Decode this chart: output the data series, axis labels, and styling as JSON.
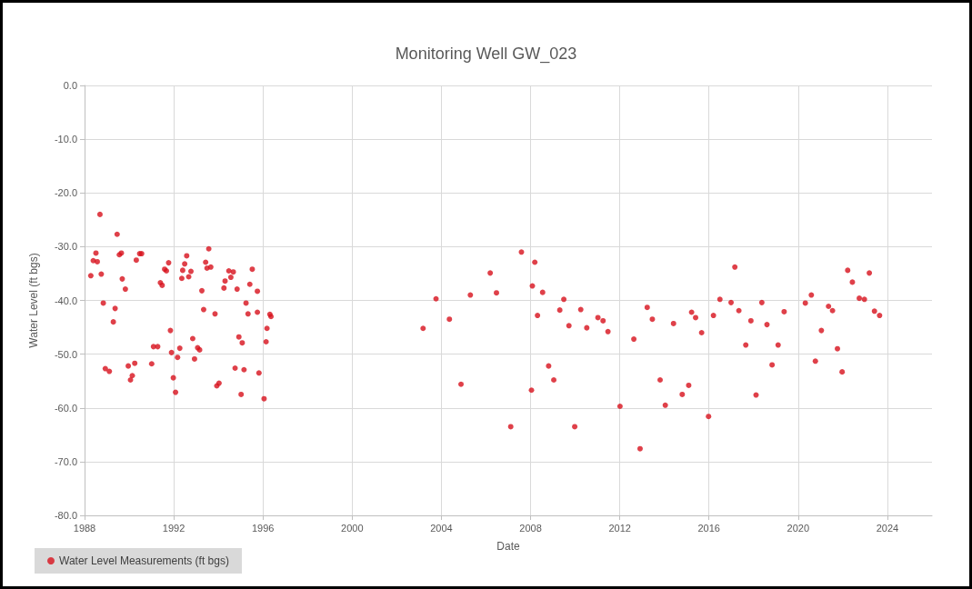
{
  "chart_data": {
    "type": "scatter",
    "title": "Monitoring Well GW_023",
    "xlabel": "Date",
    "ylabel": "Water Level (ft bgs)",
    "xlim": [
      1988,
      2026
    ],
    "xticks": [
      1988,
      1992,
      1996,
      2000,
      2004,
      2008,
      2012,
      2016,
      2020,
      2024
    ],
    "ylim": [
      -80,
      0
    ],
    "yticks": [
      {
        "value": -80,
        "label": "-80.0"
      },
      {
        "value": -70,
        "label": "-70.0"
      },
      {
        "value": -60,
        "label": "-60.0"
      },
      {
        "value": -50,
        "label": "-50.0"
      },
      {
        "value": -40,
        "label": "-40.0"
      },
      {
        "value": -30,
        "label": "-30.0"
      },
      {
        "value": -20,
        "label": "-20.0"
      },
      {
        "value": -10,
        "label": "-10.0"
      },
      {
        "value": 0,
        "label": "0.0"
      }
    ],
    "grid": true,
    "legend": "bottom left",
    "marker": "circle",
    "series": [
      {
        "name": "Water Level Measurements (ft bgs)",
        "color": "#d7101c",
        "x": [
          1988.69,
          1989.46,
          1988.51,
          1988.39,
          1988.57,
          1988.28,
          1988.75,
          1989.56,
          1989.65,
          1989.69,
          1989.83,
          1988.84,
          1989.37,
          1989.29,
          1988.93,
          1989.11,
          1989.96,
          1990.25,
          1990.14,
          1990.06,
          1990.32,
          1990.47,
          1990.56,
          1991.01,
          1991.09,
          1991.28,
          1991.4,
          1991.48,
          1991.59,
          1991.67,
          1991.77,
          1991.85,
          1991.9,
          1991.98,
          1992.08,
          1992.17,
          1992.27,
          1992.36,
          1992.4,
          1992.49,
          1992.58,
          1992.67,
          1992.77,
          1992.85,
          1992.93,
          1993.07,
          1993.16,
          1993.26,
          1993.34,
          1993.43,
          1993.49,
          1993.66,
          1993.57,
          1993.85,
          1993.93,
          1994.03,
          1994.25,
          1994.3,
          1994.47,
          1994.56,
          1994.67,
          1994.75,
          1994.84,
          1994.92,
          1995.02,
          1995.07,
          1995.15,
          1995.24,
          1995.33,
          1995.41,
          1995.52,
          1995.75,
          1995.75,
          1995.82,
          1996.05,
          1996.14,
          1996.18,
          1996.31,
          1996.36,
          2003.18,
          2003.76,
          2004.36,
          2004.88,
          2005.3,
          2006.19,
          2006.47,
          2007.11,
          2007.59,
          2008.04,
          2008.08,
          2008.19,
          2008.31,
          2008.54,
          2008.81,
          2009.04,
          2009.31,
          2009.49,
          2009.72,
          2009.98,
          2010.25,
          2010.52,
          2011.02,
          2011.25,
          2011.47,
          2012.01,
          2012.63,
          2012.91,
          2013.23,
          2013.46,
          2013.81,
          2014.04,
          2014.41,
          2014.8,
          2015.09,
          2015.22,
          2015.4,
          2015.67,
          2015.98,
          2016.2,
          2016.49,
          2016.99,
          2017.16,
          2017.34,
          2017.65,
          2017.88,
          2018.11,
          2018.37,
          2018.6,
          2018.83,
          2019.1,
          2019.37,
          2020.32,
          2020.59,
          2020.77,
          2021.04,
          2021.36,
          2021.54,
          2021.76,
          2021.97,
          2022.22,
          2022.43,
          2022.74,
          2022.97,
          2023.19,
          2023.42,
          2023.65
        ],
        "values": [
          -24.0,
          -27.7,
          -31.2,
          -32.6,
          -32.8,
          -35.4,
          -35.1,
          -31.5,
          -31.2,
          -36.0,
          -37.9,
          -40.5,
          -41.5,
          -44.0,
          -52.7,
          -53.2,
          -52.2,
          -51.7,
          -54.0,
          -54.8,
          -32.5,
          -31.3,
          -31.3,
          -51.8,
          -48.6,
          -48.6,
          -36.7,
          -37.2,
          -34.2,
          -34.5,
          -33.0,
          -45.6,
          -49.7,
          -54.4,
          -57.1,
          -50.6,
          -48.9,
          -35.9,
          -34.4,
          -33.2,
          -31.7,
          -35.6,
          -34.6,
          -47.1,
          -50.9,
          -48.8,
          -49.2,
          -38.2,
          -41.7,
          -32.9,
          -34.0,
          -33.8,
          -30.4,
          -42.5,
          -55.9,
          -55.4,
          -37.7,
          -36.4,
          -34.5,
          -35.7,
          -34.7,
          -52.6,
          -37.9,
          -46.8,
          -57.5,
          -47.9,
          -52.9,
          -40.5,
          -42.5,
          -37.0,
          -34.2,
          -42.2,
          -38.3,
          -53.5,
          -58.3,
          -47.7,
          -45.2,
          -42.6,
          -43.0,
          -45.2,
          -39.7,
          -43.5,
          -55.6,
          -39.0,
          -34.9,
          -38.6,
          -63.5,
          -31.0,
          -56.7,
          -37.3,
          -32.9,
          -42.8,
          -38.5,
          -52.2,
          -54.8,
          -41.8,
          -39.8,
          -44.7,
          -63.5,
          -41.7,
          -45.1,
          -43.2,
          -43.8,
          -45.8,
          -59.7,
          -47.2,
          -67.6,
          -41.3,
          -43.5,
          -54.8,
          -59.5,
          -44.3,
          -57.5,
          -55.8,
          -42.2,
          -43.2,
          -46.0,
          -61.6,
          -42.8,
          -39.8,
          -40.4,
          -33.8,
          -41.9,
          -48.3,
          -43.8,
          -57.6,
          -40.4,
          -44.5,
          -52.0,
          -48.3,
          -42.1,
          -40.5,
          -39.0,
          -51.3,
          -45.6,
          -41.1,
          -41.9,
          -49.0,
          -53.3,
          -34.4,
          -36.6,
          -39.6,
          -39.8,
          -34.9,
          -42.0,
          -42.8
        ]
      }
    ]
  }
}
